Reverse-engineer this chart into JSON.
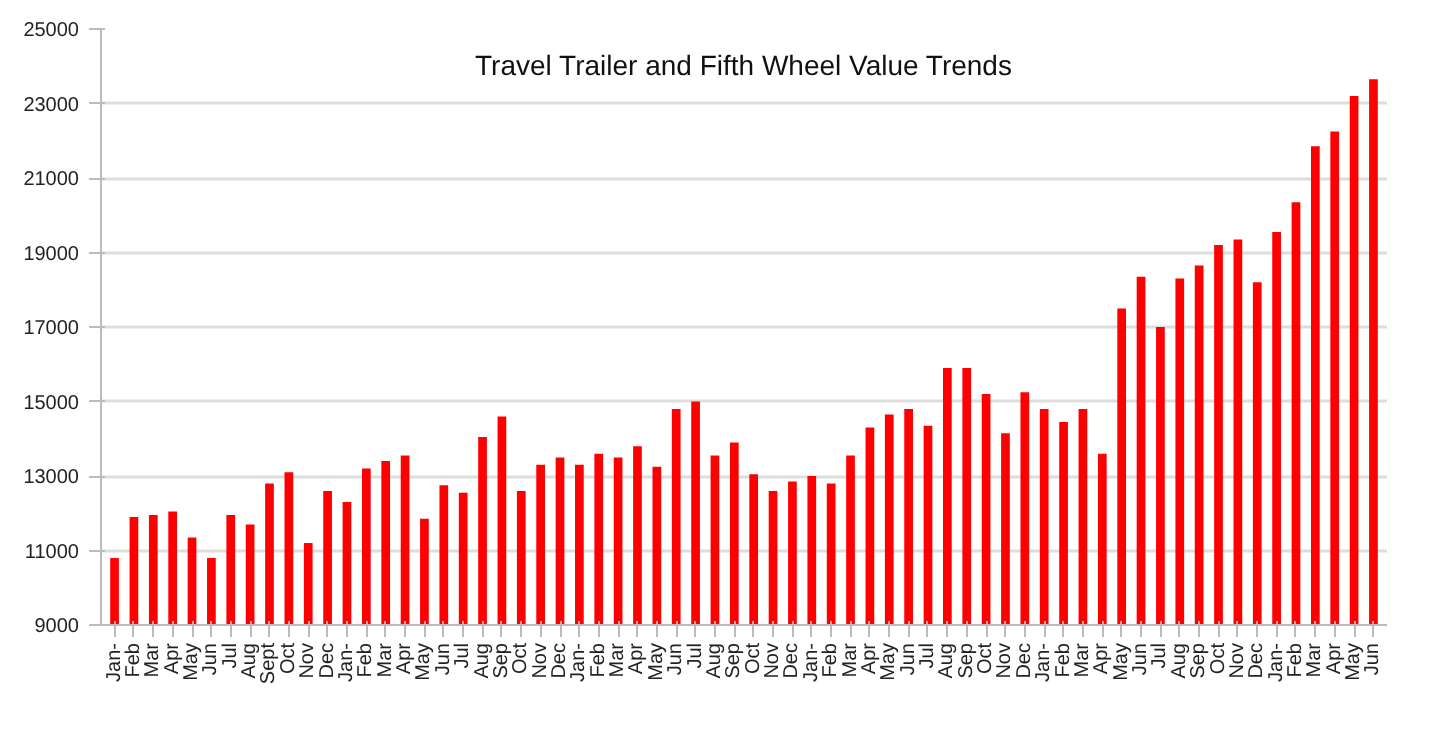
{
  "chart_data": {
    "type": "bar",
    "title": "Travel Trailer and Fifth Wheel Value Trends",
    "categories": [
      "Jan-",
      "Feb",
      "Mar",
      "Apr",
      "May",
      "Jun",
      "Jul",
      "Aug",
      "Sept",
      "Oct",
      "Nov",
      "Dec",
      "Jan-",
      "Feb",
      "Mar",
      "Apr",
      "May",
      "Jun",
      "Jul",
      "Aug",
      "Sep",
      "Oct",
      "Nov",
      "Dec",
      "Jan-",
      "Feb",
      "Mar",
      "Apr",
      "May",
      "Jun",
      "Jul",
      "Aug",
      "Sep",
      "Oct",
      "Nov",
      "Dec",
      "Jan-",
      "Feb",
      "Mar",
      "Apr",
      "May",
      "Jun",
      "Jul",
      "Aug",
      "Sep",
      "Oct",
      "Nov",
      "Dec",
      "Jan-",
      "Feb",
      "Mar",
      "Apr",
      "May",
      "Jun",
      "Jul",
      "Aug",
      "Sep",
      "Oct",
      "Nov",
      "Dec",
      "Jan-",
      "Feb",
      "Mar",
      "Apr",
      "May",
      "Jun"
    ],
    "values": [
      10800,
      11900,
      11950,
      12050,
      11350,
      10800,
      11950,
      11700,
      12800,
      13100,
      11200,
      12600,
      12300,
      13200,
      13400,
      13550,
      11850,
      12750,
      12550,
      14050,
      14600,
      12600,
      13300,
      13500,
      13300,
      13600,
      13500,
      13800,
      13250,
      14800,
      15000,
      13550,
      13900,
      13050,
      12600,
      12850,
      13000,
      12800,
      13550,
      14300,
      14650,
      14800,
      14350,
      15900,
      15900,
      15200,
      14150,
      15250,
      14800,
      14450,
      14800,
      13600,
      17500,
      18350,
      17000,
      18300,
      18650,
      19200,
      19350,
      18200,
      19550,
      20350,
      21850,
      22250,
      23200,
      23650
    ],
    "color": "#ff0000",
    "ylim": [
      9000,
      25000
    ],
    "yticks": [
      9000,
      11000,
      13000,
      15000,
      17000,
      19000,
      21000,
      23000,
      25000
    ],
    "grid": "y"
  }
}
